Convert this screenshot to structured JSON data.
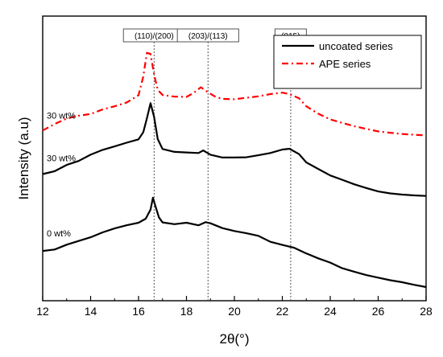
{
  "chart_data": {
    "type": "line",
    "title": "",
    "xlabel": "2θ(°)",
    "ylabel": "Intensity (a.u)",
    "xlim": [
      12,
      28
    ],
    "ylim": [
      0,
      100
    ],
    "x_ticks": [
      12,
      14,
      16,
      18,
      20,
      22,
      24,
      26,
      28
    ],
    "y_ticks_shown": false,
    "grid": false,
    "legend_position": "top-right",
    "reference_lines": [
      {
        "x": 16.65,
        "label": "(110)/(200)",
        "style": "dotted"
      },
      {
        "x": 18.9,
        "label": "(203)/(113)",
        "style": "dotted"
      },
      {
        "x": 22.35,
        "label": "(015)",
        "style": "dotted"
      }
    ],
    "series": [
      {
        "name": "uncoated series",
        "curve_label": "0 wt%",
        "color": "#000000",
        "dash": "solid",
        "x": [
          12,
          12.5,
          13,
          13.5,
          14,
          14.5,
          15,
          15.5,
          16,
          16.3,
          16.5,
          16.6,
          16.7,
          16.85,
          17,
          17.5,
          18,
          18.5,
          18.8,
          19,
          19.5,
          20,
          20.5,
          21,
          21.5,
          22,
          22.5,
          23,
          23.5,
          24,
          24.5,
          25,
          25.5,
          26,
          26.5,
          27,
          27.5,
          28
        ],
        "y": [
          17.5,
          18,
          19.7,
          21,
          22.3,
          24,
          25.4,
          26.5,
          27.4,
          28.8,
          32,
          36.2,
          33.4,
          29.3,
          27.5,
          26.9,
          27.4,
          26.5,
          27.6,
          27.2,
          25.5,
          24.5,
          23.7,
          22.8,
          20.7,
          19.6,
          18.6,
          16.6,
          14.9,
          13.4,
          11.4,
          10.2,
          9.0,
          8.1,
          7.2,
          6.5,
          5.6,
          4.8
        ]
      },
      {
        "name": "uncoated series",
        "curve_label": "30 wt%",
        "color": "#000000",
        "dash": "solid",
        "x": [
          12,
          12.5,
          13,
          13.5,
          14,
          14.5,
          15,
          15.5,
          16,
          16.2,
          16.35,
          16.5,
          16.65,
          16.8,
          17,
          17.5,
          18,
          18.5,
          18.7,
          19,
          19.5,
          20,
          20.5,
          21,
          21.5,
          22,
          22.3,
          22.7,
          23,
          23.5,
          24,
          24.5,
          25,
          25.5,
          26,
          26.5,
          27,
          27.5,
          28
        ],
        "y": [
          44.5,
          45.5,
          47.7,
          49.1,
          51.3,
          53,
          54.2,
          55.5,
          56.7,
          59.2,
          64.1,
          69.4,
          64.6,
          56.8,
          53.3,
          52.3,
          52.1,
          51.9,
          52.8,
          51.3,
          50.3,
          50.3,
          50.4,
          51.1,
          51.9,
          53.1,
          53.4,
          51.5,
          48.6,
          46.3,
          44,
          42.5,
          40.9,
          39.6,
          38.4,
          37.7,
          37.3,
          37,
          36.8
        ]
      },
      {
        "name": "APE series",
        "curve_label": "30 wt%",
        "color": "#ff0000",
        "dash": "dashed",
        "x": [
          12,
          12.5,
          13,
          13.5,
          14,
          14.5,
          15,
          15.5,
          16,
          16.2,
          16.35,
          16.5,
          16.65,
          16.8,
          17,
          17.5,
          18,
          18.3,
          18.6,
          18.9,
          19.2,
          19.5,
          20,
          20.5,
          21,
          21.5,
          22,
          22.3,
          22.7,
          23,
          23.5,
          24,
          24.5,
          25,
          25.5,
          26,
          26.5,
          27,
          27.5,
          28
        ],
        "y": [
          59.8,
          62.1,
          64,
          65,
          65.6,
          67.2,
          68.3,
          69.6,
          72.2,
          78.8,
          87.1,
          86.7,
          79.5,
          74.1,
          72.3,
          71.7,
          71.6,
          73,
          75,
          73.2,
          71.7,
          70.9,
          70.8,
          71.3,
          71.8,
          72.6,
          73.1,
          72.6,
          71.1,
          68.3,
          65.7,
          63.7,
          62.5,
          61.3,
          60.4,
          59.5,
          59,
          58.6,
          58.3,
          58.1
        ]
      }
    ]
  }
}
